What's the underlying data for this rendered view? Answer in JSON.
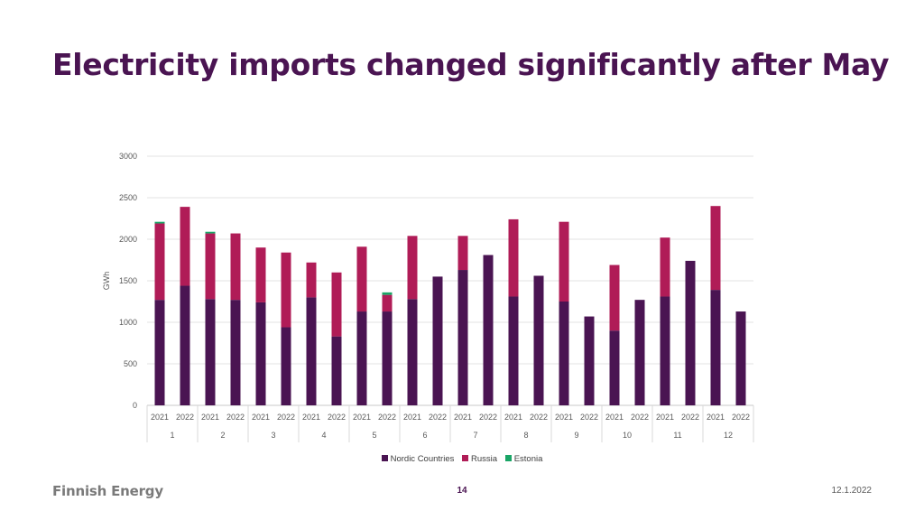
{
  "title": "Electricity imports changed significantly after May",
  "footer": {
    "logo": "Finnish Energy",
    "page": "14",
    "date": "12.1.2022"
  },
  "colors": {
    "nordic": "#4a1452",
    "russia": "#b01c57",
    "estonia": "#1aa566",
    "title": "#4a1452"
  },
  "chart_data": {
    "type": "bar",
    "stacked": true,
    "ylabel": "GWh",
    "ylim": [
      0,
      3000
    ],
    "yticks": [
      0,
      500,
      1000,
      1500,
      2000,
      2500,
      3000
    ],
    "legend_position": "bottom",
    "months": [
      "1",
      "2",
      "3",
      "4",
      "5",
      "6",
      "7",
      "8",
      "9",
      "10",
      "11",
      "12"
    ],
    "years": [
      "2021",
      "2022"
    ],
    "categories": [
      "2021",
      "2022",
      "2021",
      "2022",
      "2021",
      "2022",
      "2021",
      "2022",
      "2021",
      "2022",
      "2021",
      "2022",
      "2021",
      "2022",
      "2021",
      "2022",
      "2021",
      "2022",
      "2021",
      "2022",
      "2021",
      "2022",
      "2021",
      "2022"
    ],
    "series": [
      {
        "name": "Nordic Countries",
        "color": "#4a1452",
        "values": [
          1270,
          1440,
          1280,
          1270,
          1240,
          940,
          1300,
          830,
          1130,
          1130,
          1280,
          1550,
          1630,
          1810,
          1310,
          1560,
          1250,
          1070,
          900,
          1270,
          1310,
          1740,
          1390,
          1130
        ]
      },
      {
        "name": "Russia",
        "color": "#b01c57",
        "values": [
          920,
          950,
          790,
          800,
          660,
          900,
          420,
          770,
          780,
          200,
          760,
          0,
          410,
          0,
          930,
          0,
          960,
          0,
          790,
          0,
          710,
          0,
          1010,
          0
        ]
      },
      {
        "name": "Estonia",
        "color": "#1aa566",
        "values": [
          20,
          0,
          20,
          0,
          0,
          0,
          0,
          0,
          0,
          30,
          0,
          0,
          0,
          0,
          0,
          0,
          0,
          0,
          0,
          0,
          0,
          0,
          0,
          0
        ]
      }
    ]
  }
}
